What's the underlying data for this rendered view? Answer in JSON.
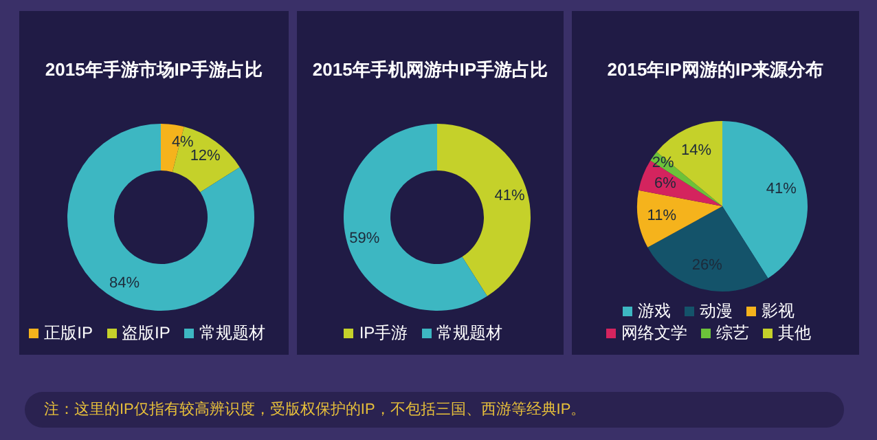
{
  "chart_data": [
    {
      "type": "donut",
      "title": "2015年手游市场IP手游占比",
      "categories": [
        "正版IP",
        "盗版IP",
        "常规题材"
      ],
      "values": [
        4,
        12,
        84
      ],
      "colors": [
        "#f5b31c",
        "#c5d12a",
        "#3db7c2"
      ],
      "value_labels": [
        "4%",
        "12%",
        "84%"
      ],
      "legend": "bottom",
      "annotations": [
        "注：这里的IP仅指有较高辨识度，受版权保护的IP，不包括三国、西游等经典IP。"
      ]
    },
    {
      "type": "donut",
      "title": "2015年手机网游中IP手游占比",
      "categories": [
        "IP手游",
        "常规题材"
      ],
      "values": [
        41,
        59
      ],
      "colors": [
        "#c5d12a",
        "#3db7c2"
      ],
      "value_labels": [
        "41%",
        "59%"
      ],
      "legend": "bottom"
    },
    {
      "type": "pie",
      "title": "2015年IP网游的IP来源分布",
      "categories": [
        "游戏",
        "动漫",
        "影视",
        "网络文学",
        "综艺",
        "其他"
      ],
      "values": [
        41,
        26,
        11,
        6,
        2,
        14
      ],
      "colors": [
        "#3db7c2",
        "#14536a",
        "#f5b31c",
        "#d4245e",
        "#6cc23a",
        "#c5d12a"
      ],
      "value_labels": [
        "41%",
        "26%",
        "11%",
        "6%",
        "2%",
        "14%"
      ],
      "legend": "bottom"
    }
  ]
}
